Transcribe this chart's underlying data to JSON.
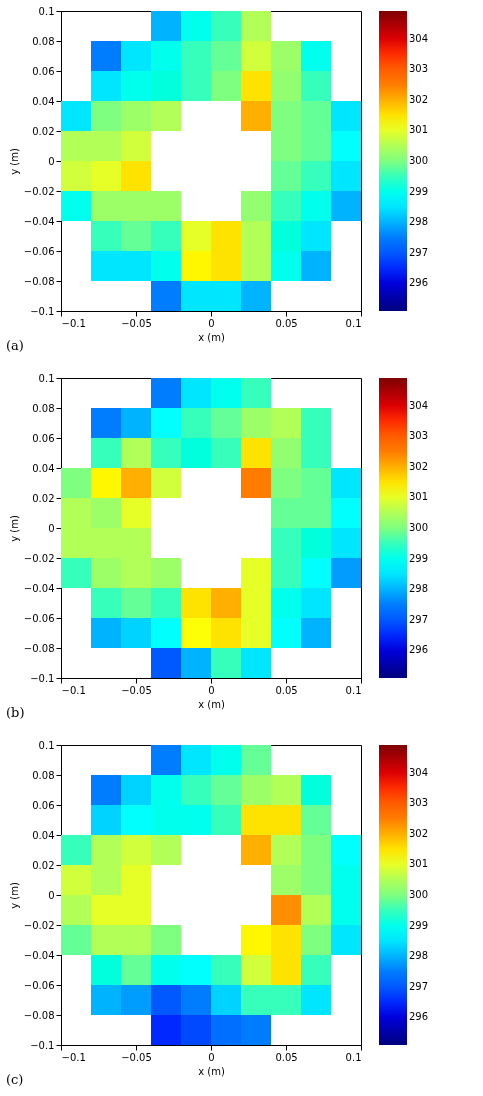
{
  "chart_data": [
    {
      "type": "scatter",
      "xlabel": "x (m)",
      "ylabel": "y (m)",
      "annotations": [
        "(a)"
      ],
      "marker": "square",
      "xlim": [
        -0.1,
        0.1
      ],
      "ylim": [
        -0.1,
        0.1
      ],
      "xticks": [
        -0.1,
        -0.05,
        0,
        0.05,
        0.1
      ],
      "yticks": [
        -0.1,
        -0.08,
        -0.06,
        -0.04,
        -0.02,
        0,
        0.02,
        0.04,
        0.06,
        0.08,
        0.1
      ],
      "clim": [
        295.1,
        304.9
      ],
      "cticks": [
        296,
        297,
        298,
        299,
        300,
        301,
        302,
        303,
        304
      ],
      "x": [
        -0.03,
        -0.01,
        0.01,
        0.03,
        -0.07,
        -0.05,
        -0.03,
        -0.01,
        0.01,
        0.03,
        0.05,
        0.07,
        -0.07,
        -0.05,
        -0.03,
        -0.01,
        0.01,
        0.03,
        0.05,
        0.07,
        -0.09,
        -0.07,
        -0.05,
        -0.03,
        0.03,
        0.05,
        0.07,
        0.09,
        -0.09,
        -0.07,
        -0.05,
        0.05,
        0.07,
        0.09,
        -0.09,
        -0.07,
        -0.05,
        0.05,
        0.07,
        0.09,
        -0.09,
        -0.07,
        -0.05,
        -0.03,
        0.03,
        0.05,
        0.07,
        0.09,
        -0.07,
        -0.05,
        -0.03,
        -0.01,
        0.01,
        0.03,
        0.05,
        0.07,
        -0.07,
        -0.05,
        -0.03,
        -0.01,
        0.01,
        0.03,
        0.05,
        0.07,
        -0.03,
        -0.01,
        0.01,
        0.03
      ],
      "values": [
        0.09,
        0.09,
        0.09,
        0.09,
        0.07,
        0.07,
        0.07,
        0.07,
        0.07,
        0.07,
        0.07,
        0.07,
        0.05,
        0.05,
        0.05,
        0.05,
        0.05,
        0.05,
        0.05,
        0.05,
        0.03,
        0.03,
        0.03,
        0.03,
        0.03,
        0.03,
        0.03,
        0.03,
        0.01,
        0.01,
        0.01,
        0.01,
        0.01,
        0.01,
        -0.01,
        -0.01,
        -0.01,
        -0.01,
        -0.01,
        -0.01,
        -0.03,
        -0.03,
        -0.03,
        -0.03,
        -0.03,
        -0.03,
        -0.03,
        -0.03,
        -0.05,
        -0.05,
        -0.05,
        -0.05,
        -0.05,
        -0.05,
        -0.05,
        -0.05,
        -0.07,
        -0.07,
        -0.07,
        -0.07,
        -0.07,
        -0.07,
        -0.07,
        -0.07,
        -0.09,
        -0.09,
        -0.09,
        -0.09
      ],
      "cvalues": [
        298,
        299,
        299.5,
        300.5,
        297.5,
        298.5,
        299,
        299.5,
        299.8,
        300.8,
        300.3,
        299,
        298.5,
        299,
        299.2,
        299.5,
        300,
        301.5,
        300.2,
        299.5,
        298.5,
        300,
        300.3,
        300.5,
        302,
        300,
        299.8,
        298.5,
        300.5,
        300.5,
        300.8,
        300,
        299.8,
        298.8,
        300.8,
        301,
        301.5,
        299.8,
        299.5,
        298.5,
        299,
        300.3,
        300.3,
        300.3,
        300.2,
        299.5,
        299,
        298,
        299.5,
        299.8,
        299.5,
        301,
        301.5,
        300.5,
        299.2,
        298.5,
        298.5,
        298.5,
        299,
        301.3,
        301.5,
        300.5,
        299,
        298,
        297.5,
        298.5,
        298.5,
        298
      ]
    },
    {
      "type": "scatter",
      "xlabel": "x (m)",
      "ylabel": "y (m)",
      "annotations": [
        "(b)"
      ],
      "marker": "square",
      "xlim": [
        -0.1,
        0.1
      ],
      "ylim": [
        -0.1,
        0.1
      ],
      "xticks": [
        -0.1,
        -0.05,
        0,
        0.05,
        0.1
      ],
      "yticks": [
        -0.1,
        -0.08,
        -0.06,
        -0.04,
        -0.02,
        0,
        0.02,
        0.04,
        0.06,
        0.08,
        0.1
      ],
      "clim": [
        295.1,
        304.9
      ],
      "cticks": [
        296,
        297,
        298,
        299,
        300,
        301,
        302,
        303,
        304
      ],
      "x": [
        -0.03,
        -0.01,
        0.01,
        0.03,
        -0.07,
        -0.05,
        -0.03,
        -0.01,
        0.01,
        0.03,
        0.05,
        0.07,
        -0.07,
        -0.05,
        -0.03,
        -0.01,
        0.01,
        0.03,
        0.05,
        0.07,
        -0.09,
        -0.07,
        -0.05,
        -0.03,
        0.03,
        0.05,
        0.07,
        0.09,
        -0.09,
        -0.07,
        -0.05,
        0.05,
        0.07,
        0.09,
        -0.09,
        -0.07,
        -0.05,
        0.05,
        0.07,
        0.09,
        -0.09,
        -0.07,
        -0.05,
        -0.03,
        0.03,
        0.05,
        0.07,
        0.09,
        -0.07,
        -0.05,
        -0.03,
        -0.01,
        0.01,
        0.03,
        0.05,
        0.07,
        -0.07,
        -0.05,
        -0.03,
        -0.01,
        0.01,
        0.03,
        0.05,
        0.07,
        -0.03,
        -0.01,
        0.01,
        0.03
      ],
      "values": [
        0.09,
        0.09,
        0.09,
        0.09,
        0.07,
        0.07,
        0.07,
        0.07,
        0.07,
        0.07,
        0.07,
        0.07,
        0.05,
        0.05,
        0.05,
        0.05,
        0.05,
        0.05,
        0.05,
        0.05,
        0.03,
        0.03,
        0.03,
        0.03,
        0.03,
        0.03,
        0.03,
        0.03,
        0.01,
        0.01,
        0.01,
        0.01,
        0.01,
        0.01,
        -0.01,
        -0.01,
        -0.01,
        -0.01,
        -0.01,
        -0.01,
        -0.03,
        -0.03,
        -0.03,
        -0.03,
        -0.03,
        -0.03,
        -0.03,
        -0.03,
        -0.05,
        -0.05,
        -0.05,
        -0.05,
        -0.05,
        -0.05,
        -0.05,
        -0.05,
        -0.07,
        -0.07,
        -0.07,
        -0.07,
        -0.07,
        -0.07,
        -0.07,
        -0.07,
        -0.09,
        -0.09,
        -0.09,
        -0.09
      ],
      "cvalues": [
        297.5,
        298.5,
        299,
        299.5,
        297.5,
        298,
        298.8,
        299.5,
        299.8,
        300.3,
        300.5,
        299.5,
        299.5,
        300.5,
        299.5,
        299.2,
        299.5,
        301.5,
        300.2,
        299.5,
        300,
        301.3,
        302,
        300.8,
        302.5,
        300,
        299.8,
        298.5,
        300.5,
        300.3,
        301,
        299.8,
        299.8,
        298.8,
        300.5,
        300.5,
        300.5,
        299.5,
        299.2,
        298.5,
        299.5,
        300.3,
        300.5,
        300.3,
        301,
        299.5,
        298.8,
        297.8,
        299.5,
        299.8,
        299.5,
        301.5,
        302,
        301,
        299,
        298.5,
        298,
        298.3,
        298.8,
        301.2,
        301.5,
        301,
        298.8,
        298,
        297,
        298,
        299.5,
        298.5
      ]
    },
    {
      "type": "scatter",
      "xlabel": "x (m)",
      "ylabel": "y (m)",
      "annotations": [
        "(c)"
      ],
      "marker": "square",
      "xlim": [
        -0.1,
        0.1
      ],
      "ylim": [
        -0.1,
        0.1
      ],
      "xticks": [
        -0.1,
        -0.05,
        0,
        0.05,
        0.1
      ],
      "yticks": [
        -0.1,
        -0.08,
        -0.06,
        -0.04,
        -0.02,
        0,
        0.02,
        0.04,
        0.06,
        0.08,
        0.1
      ],
      "clim": [
        295.1,
        304.9
      ],
      "cticks": [
        296,
        297,
        298,
        299,
        300,
        301,
        302,
        303,
        304
      ],
      "x": [
        -0.03,
        -0.01,
        0.01,
        0.03,
        -0.07,
        -0.05,
        -0.03,
        -0.01,
        0.01,
        0.03,
        0.05,
        0.07,
        -0.07,
        -0.05,
        -0.03,
        -0.01,
        0.01,
        0.03,
        0.05,
        0.07,
        -0.09,
        -0.07,
        -0.05,
        -0.03,
        0.03,
        0.05,
        0.07,
        0.09,
        -0.09,
        -0.07,
        -0.05,
        0.05,
        0.07,
        0.09,
        -0.09,
        -0.07,
        -0.05,
        0.05,
        0.07,
        0.09,
        -0.09,
        -0.07,
        -0.05,
        -0.03,
        0.03,
        0.05,
        0.07,
        0.09,
        -0.07,
        -0.05,
        -0.03,
        -0.01,
        0.01,
        0.03,
        0.05,
        0.07,
        -0.07,
        -0.05,
        -0.03,
        -0.01,
        0.01,
        0.03,
        0.05,
        0.07,
        -0.03,
        -0.01,
        0.01,
        0.03
      ],
      "values": [
        0.09,
        0.09,
        0.09,
        0.09,
        0.07,
        0.07,
        0.07,
        0.07,
        0.07,
        0.07,
        0.07,
        0.07,
        0.05,
        0.05,
        0.05,
        0.05,
        0.05,
        0.05,
        0.05,
        0.05,
        0.03,
        0.03,
        0.03,
        0.03,
        0.03,
        0.03,
        0.03,
        0.03,
        0.01,
        0.01,
        0.01,
        0.01,
        0.01,
        0.01,
        -0.01,
        -0.01,
        -0.01,
        -0.01,
        -0.01,
        -0.01,
        -0.03,
        -0.03,
        -0.03,
        -0.03,
        -0.03,
        -0.03,
        -0.03,
        -0.03,
        -0.05,
        -0.05,
        -0.05,
        -0.05,
        -0.05,
        -0.05,
        -0.05,
        -0.05,
        -0.07,
        -0.07,
        -0.07,
        -0.07,
        -0.07,
        -0.07,
        -0.07,
        -0.07,
        -0.09,
        -0.09,
        -0.09,
        -0.09
      ],
      "cvalues": [
        297.5,
        298.5,
        299,
        299.8,
        297.5,
        298.3,
        299,
        299.5,
        299.8,
        300.3,
        300.5,
        299.2,
        298.3,
        298.8,
        299,
        299,
        299.5,
        301.5,
        301.5,
        299.8,
        299.5,
        300.5,
        300.8,
        300.5,
        302,
        300.5,
        300,
        298.8,
        300.8,
        300.5,
        301,
        300.3,
        300,
        299,
        300.5,
        301,
        301,
        302.3,
        300.5,
        299,
        299.8,
        300.5,
        300.5,
        300,
        301.3,
        301.5,
        300,
        298.5,
        299.2,
        299.8,
        299,
        298.8,
        299.5,
        300.8,
        301.5,
        299.5,
        298,
        297.8,
        297,
        297.5,
        298.3,
        299.5,
        299.5,
        298.5,
        296.5,
        296.8,
        297.3,
        297.5
      ]
    }
  ]
}
